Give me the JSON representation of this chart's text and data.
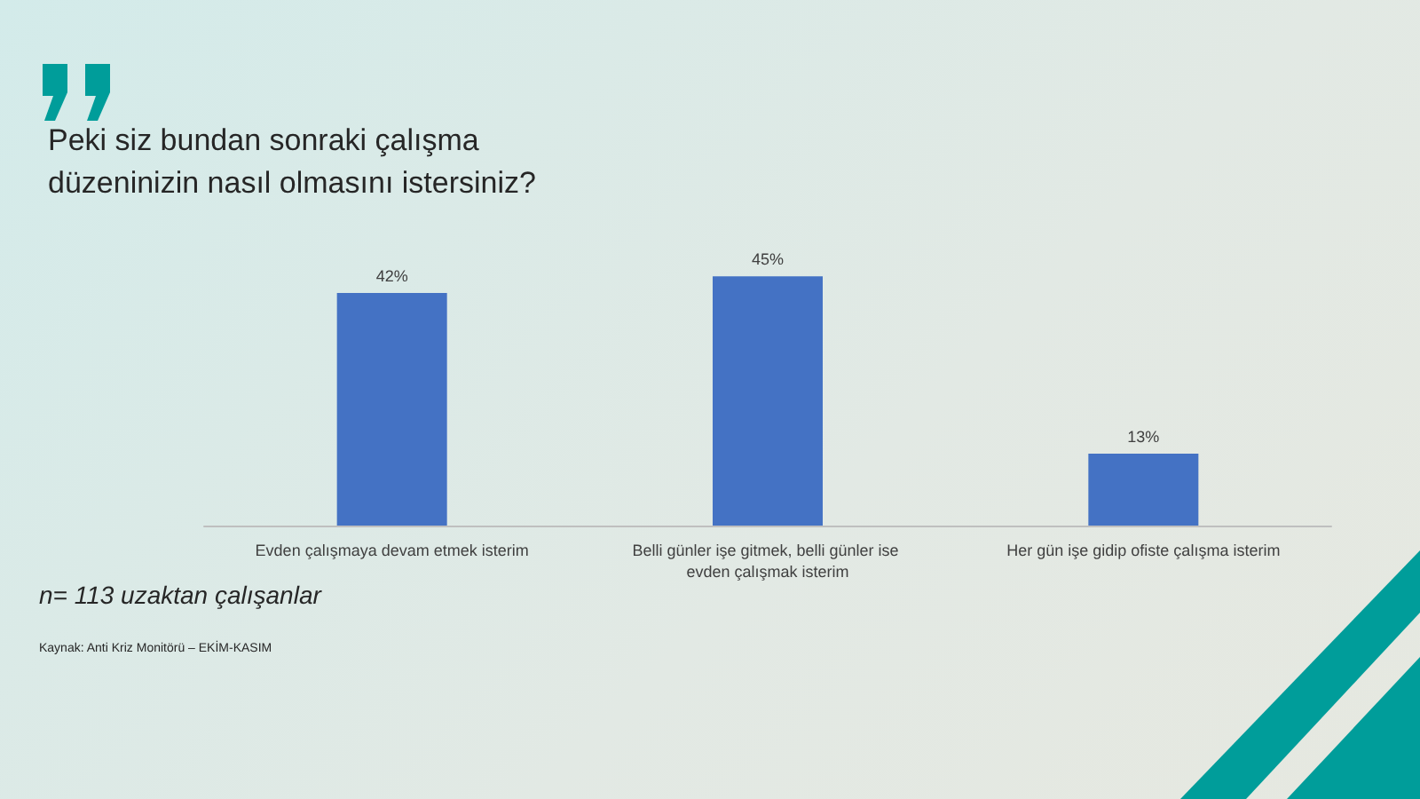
{
  "chart_data": {
    "type": "bar",
    "title": "Peki siz bundan sonraki çalışma\ndüzeninizin nasıl olmasını istersiniz?",
    "categories": [
      "Evden çalışmaya devam etmek isterim",
      "Belli günler işe gitmek, belli günler ise evden çalışmak isterim",
      "Her gün işe gidip ofiste çalışma isterim"
    ],
    "values": [
      42,
      45,
      13
    ],
    "color": "#4472c4",
    "value_labels": [
      "42%",
      "45%",
      "13%"
    ],
    "annotations": [
      "n= 113 uzaktan çalışanlar",
      "Kaynak: Anti Kriz Monitörü – EKİM-KASIM"
    ]
  }
}
